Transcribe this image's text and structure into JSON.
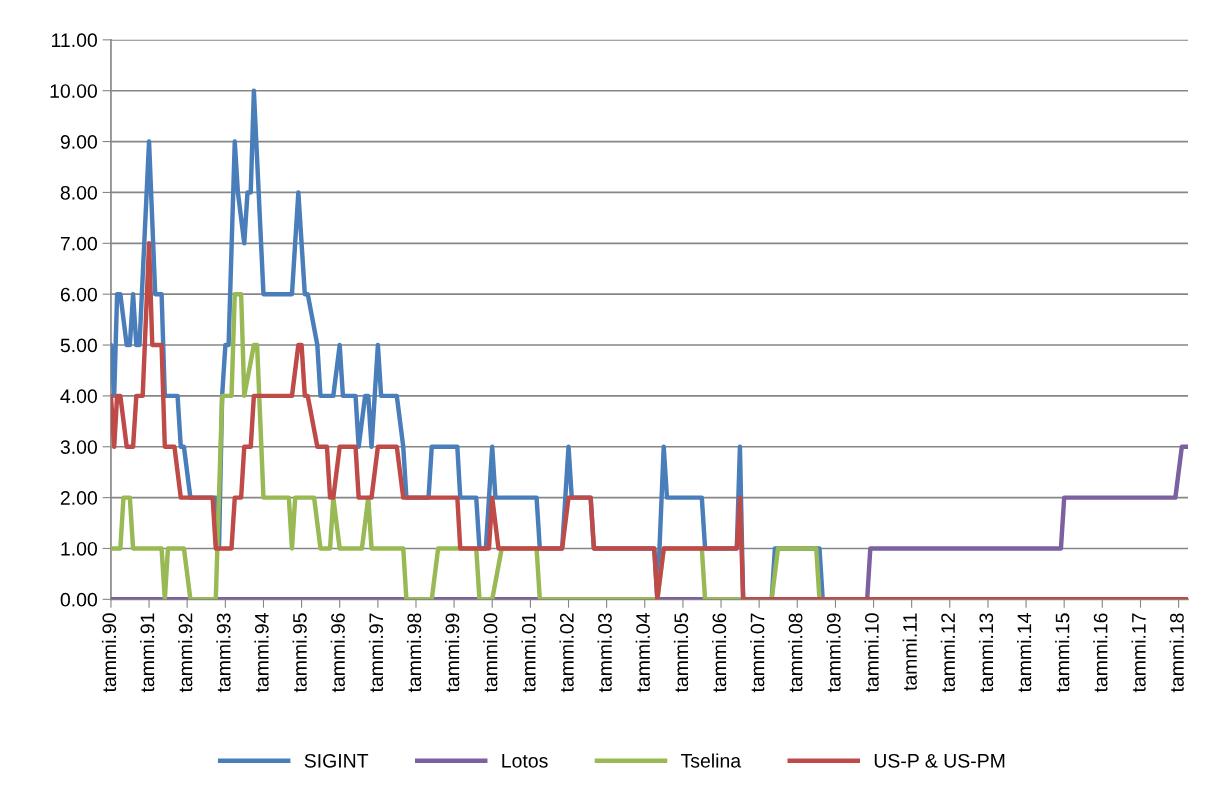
{
  "chart_data": {
    "type": "line",
    "xlim": [
      "1990-01",
      "2018-04"
    ],
    "xticks": [
      {
        "value": "1990-01",
        "label": "tammi.90"
      },
      {
        "value": "1991-01",
        "label": "tammi.91"
      },
      {
        "value": "1992-01",
        "label": "tammi.92"
      },
      {
        "value": "1993-01",
        "label": "tammi.93"
      },
      {
        "value": "1994-01",
        "label": "tammi.94"
      },
      {
        "value": "1995-01",
        "label": "tammi.95"
      },
      {
        "value": "1996-01",
        "label": "tammi.96"
      },
      {
        "value": "1997-01",
        "label": "tammi.97"
      },
      {
        "value": "1998-01",
        "label": "tammi.98"
      },
      {
        "value": "1999-01",
        "label": "tammi.99"
      },
      {
        "value": "2000-01",
        "label": "tammi.00"
      },
      {
        "value": "2001-01",
        "label": "tammi.01"
      },
      {
        "value": "2002-01",
        "label": "tammi.02"
      },
      {
        "value": "2003-01",
        "label": "tammi.03"
      },
      {
        "value": "2004-01",
        "label": "tammi.04"
      },
      {
        "value": "2005-01",
        "label": "tammi.05"
      },
      {
        "value": "2006-01",
        "label": "tammi.06"
      },
      {
        "value": "2007-01",
        "label": "tammi.07"
      },
      {
        "value": "2008-01",
        "label": "tammi.08"
      },
      {
        "value": "2009-01",
        "label": "tammi.09"
      },
      {
        "value": "2010-01",
        "label": "tammi.10"
      },
      {
        "value": "2011-01",
        "label": "tammi.11"
      },
      {
        "value": "2012-01",
        "label": "tammi.12"
      },
      {
        "value": "2013-01",
        "label": "tammi.13"
      },
      {
        "value": "2014-01",
        "label": "tammi.14"
      },
      {
        "value": "2015-01",
        "label": "tammi.15"
      },
      {
        "value": "2016-01",
        "label": "tammi.16"
      },
      {
        "value": "2017-01",
        "label": "tammi.17"
      },
      {
        "value": "2018-01",
        "label": "tammi.18"
      }
    ],
    "ylim": [
      0,
      11
    ],
    "yticks": [
      {
        "value": 0,
        "label": "0.00"
      },
      {
        "value": 1,
        "label": "1.00"
      },
      {
        "value": 2,
        "label": "2.00"
      },
      {
        "value": 3,
        "label": "3.00"
      },
      {
        "value": 4,
        "label": "4.00"
      },
      {
        "value": 5,
        "label": "5.00"
      },
      {
        "value": 6,
        "label": "6.00"
      },
      {
        "value": 7,
        "label": "7.00"
      },
      {
        "value": 8,
        "label": "8.00"
      },
      {
        "value": 9,
        "label": "9.00"
      },
      {
        "value": 10,
        "label": "10.00"
      },
      {
        "value": 11,
        "label": "11.00"
      }
    ],
    "grid": "y",
    "legend": "bottom",
    "marker": "none",
    "line_style": "solid",
    "series": [
      {
        "name": "SIGINT",
        "color": "#4a7ebb",
        "x": [
          "1990-01",
          "1990-02",
          "1990-03",
          "1990-04",
          "1990-06",
          "1990-07",
          "1990-08",
          "1990-09",
          "1990-10",
          "1991-01",
          "1991-03",
          "1991-05",
          "1991-06",
          "1991-10",
          "1991-11",
          "1991-12",
          "1992-02",
          "1992-10",
          "1992-11",
          "1992-12",
          "1993-01",
          "1993-02",
          "1993-04",
          "1993-05",
          "1993-07",
          "1993-08",
          "1993-09",
          "1993-10",
          "1994-01",
          "1994-10",
          "1994-12",
          "1995-02",
          "1995-03",
          "1995-06",
          "1995-07",
          "1995-11",
          "1996-01",
          "1996-02",
          "1996-06",
          "1996-07",
          "1996-09",
          "1996-10",
          "1996-11",
          "1997-01",
          "1997-02",
          "1997-07",
          "1997-09",
          "1997-10",
          "1998-05",
          "1998-06",
          "1999-02",
          "1999-03",
          "1999-08",
          "1999-09",
          "1999-11",
          "2000-01",
          "2000-02",
          "2001-03",
          "2001-04",
          "2001-11",
          "2002-01",
          "2002-02",
          "2002-08",
          "2002-09",
          "2004-04",
          "2004-05",
          "2004-07",
          "2004-08",
          "2005-07",
          "2005-08",
          "2006-06",
          "2006-07",
          "2006-08",
          "2007-05",
          "2007-06",
          "2008-08",
          "2008-09",
          "2018-04"
        ],
        "values": [
          5,
          4,
          6,
          6,
          5,
          5,
          6,
          5,
          5,
          9,
          6,
          6,
          4,
          4,
          3,
          3,
          2,
          2,
          1,
          4,
          5,
          5,
          9,
          8,
          7,
          8,
          8,
          10,
          6,
          6,
          8,
          6,
          6,
          5,
          4,
          4,
          5,
          4,
          4,
          3,
          4,
          4,
          3,
          5,
          4,
          4,
          3,
          2,
          2,
          3,
          3,
          2,
          2,
          1,
          1,
          3,
          2,
          2,
          1,
          1,
          3,
          2,
          2,
          1,
          1,
          0,
          3,
          2,
          2,
          1,
          1,
          3,
          0,
          0,
          1,
          1,
          0,
          0
        ]
      },
      {
        "name": "Lotos",
        "color": "#7d60a0",
        "x": [
          "1990-01",
          "2009-11",
          "2009-12",
          "2014-12",
          "2015-01",
          "2017-12",
          "2018-02",
          "2018-04"
        ],
        "values": [
          0,
          0,
          1,
          1,
          2,
          2,
          3,
          3
        ]
      },
      {
        "name": "Tselina",
        "color": "#98b954",
        "x": [
          "1990-01",
          "1990-04",
          "1990-05",
          "1990-07",
          "1990-08",
          "1991-05",
          "1991-06",
          "1991-07",
          "1991-12",
          "1992-02",
          "1992-10",
          "1992-12",
          "1993-03",
          "1993-04",
          "1993-06",
          "1993-07",
          "1993-10",
          "1993-11",
          "1994-01",
          "1994-09",
          "1994-10",
          "1994-11",
          "1995-05",
          "1995-07",
          "1995-10",
          "1995-11",
          "1996-01",
          "1996-08",
          "1996-10",
          "1996-11",
          "1997-09",
          "1997-10",
          "1998-06",
          "1998-08",
          "1999-08",
          "1999-09",
          "2000-01",
          "2000-04",
          "2001-03",
          "2001-04",
          "2004-05",
          "2004-07",
          "2005-07",
          "2005-08",
          "2007-05",
          "2007-07",
          "2008-07",
          "2008-08",
          "2018-04"
        ],
        "values": [
          1,
          1,
          2,
          2,
          1,
          1,
          0,
          1,
          1,
          0,
          0,
          4,
          4,
          6,
          6,
          4,
          5,
          5,
          2,
          2,
          1,
          2,
          2,
          1,
          1,
          2,
          1,
          1,
          2,
          1,
          1,
          0,
          0,
          1,
          1,
          0,
          0,
          1,
          1,
          0,
          0,
          1,
          1,
          0,
          0,
          1,
          1,
          0,
          0
        ]
      },
      {
        "name": "US-P & US-PM",
        "color": "#be4b48",
        "x": [
          "1990-01",
          "1990-02",
          "1990-03",
          "1990-04",
          "1990-06",
          "1990-08",
          "1990-09",
          "1990-11",
          "1991-01",
          "1991-02",
          "1991-05",
          "1991-06",
          "1991-09",
          "1991-11",
          "1992-09",
          "1992-10",
          "1993-03",
          "1993-04",
          "1993-06",
          "1993-07",
          "1993-09",
          "1993-10",
          "1994-10",
          "1994-12",
          "1995-01",
          "1995-02",
          "1995-03",
          "1995-06",
          "1995-09",
          "1995-10",
          "1995-11",
          "1996-01",
          "1996-06",
          "1996-07",
          "1996-11",
          "1997-01",
          "1997-07",
          "1997-09",
          "1999-02",
          "1999-03",
          "1999-12",
          "2000-01",
          "2000-03",
          "2001-11",
          "2002-01",
          "2002-08",
          "2002-09",
          "2004-04",
          "2004-05",
          "2004-07",
          "2006-06",
          "2006-07",
          "2006-08",
          "2018-04"
        ],
        "values": [
          4,
          3,
          4,
          4,
          3,
          3,
          4,
          4,
          7,
          5,
          5,
          3,
          3,
          2,
          2,
          1,
          1,
          2,
          2,
          3,
          3,
          4,
          4,
          5,
          5,
          4,
          4,
          3,
          3,
          2,
          2,
          3,
          3,
          2,
          2,
          3,
          3,
          2,
          2,
          1,
          1,
          2,
          1,
          1,
          2,
          2,
          1,
          1,
          0,
          1,
          1,
          2,
          0,
          0
        ]
      }
    ]
  }
}
